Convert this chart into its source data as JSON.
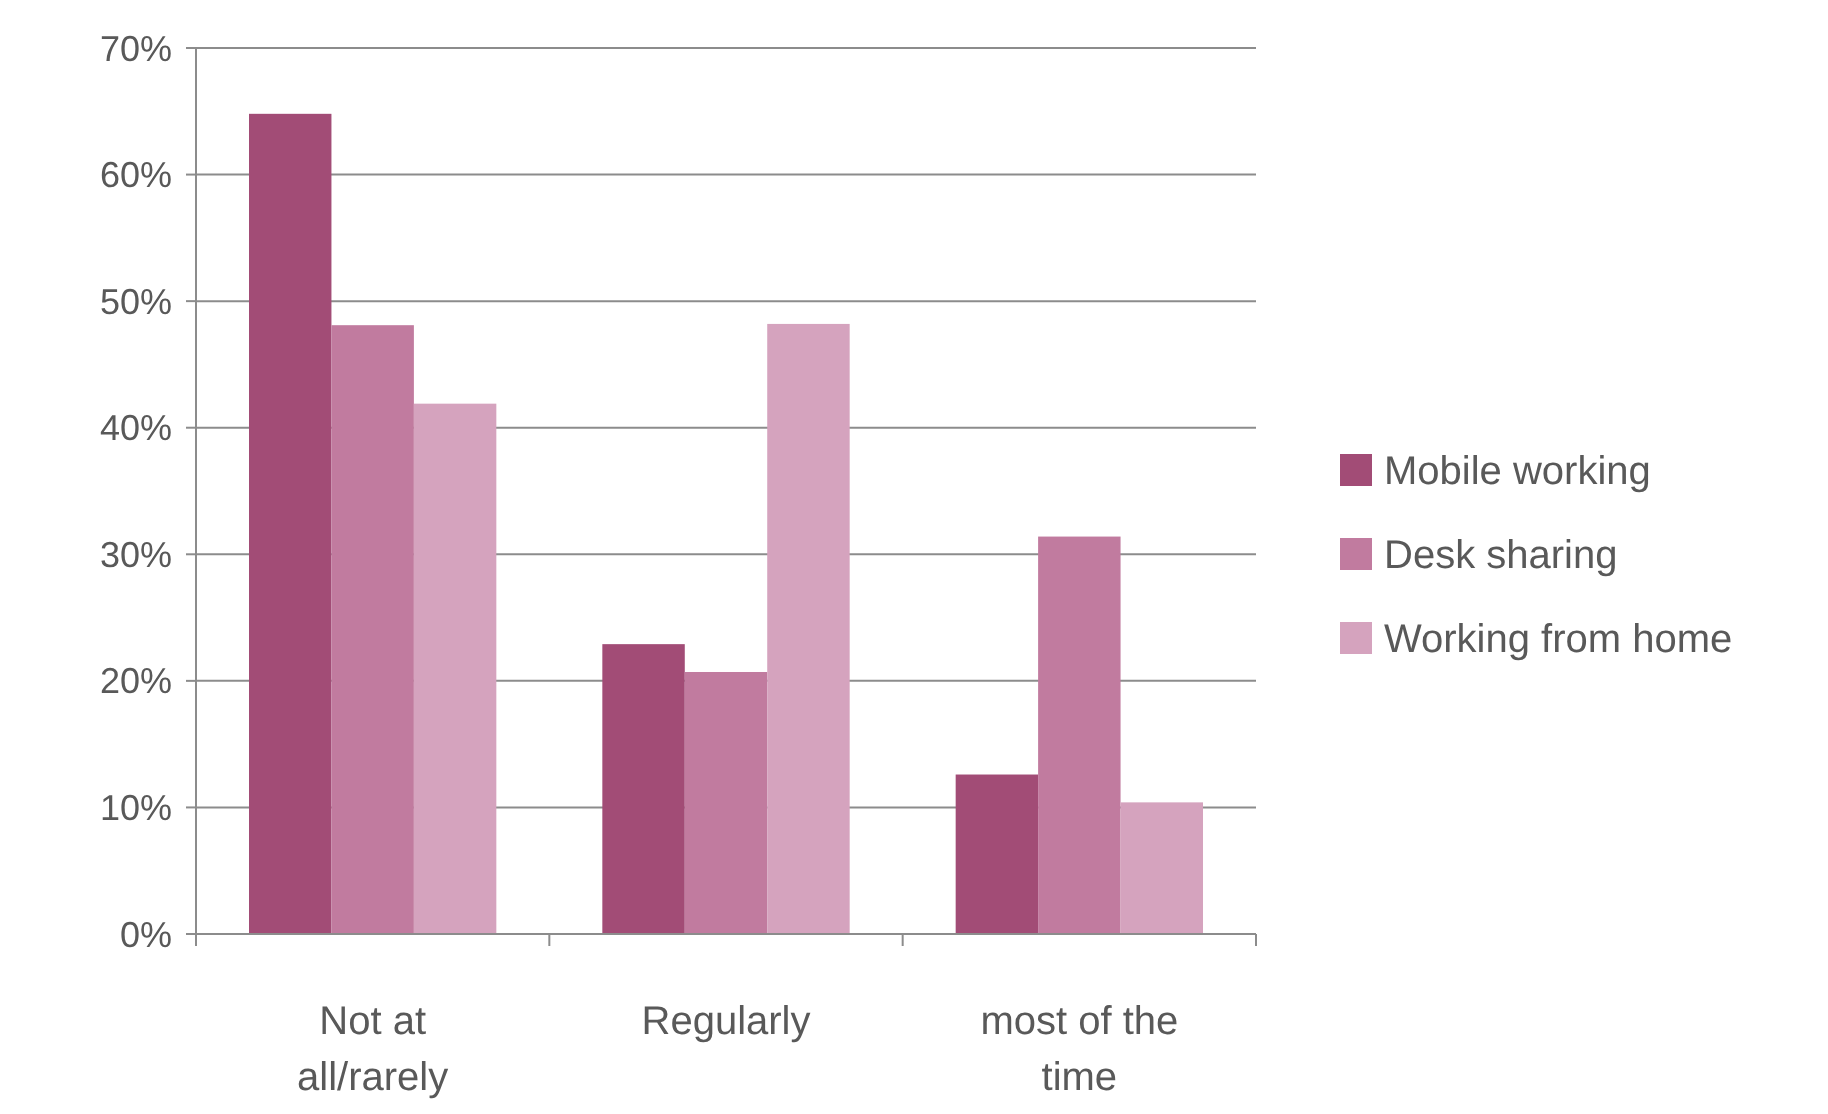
{
  "chart_data": {
    "type": "bar",
    "categories": [
      "Not at all/rarely",
      "Regularly",
      "most of the time"
    ],
    "series": [
      {
        "name": "Mobile working",
        "color": "#a24c76",
        "values": [
          64.8,
          22.9,
          12.6
        ]
      },
      {
        "name": "Desk sharing",
        "color": "#c17b9f",
        "values": [
          48.1,
          20.7,
          31.4
        ]
      },
      {
        "name": "Working from home",
        "color": "#d5a3be",
        "values": [
          41.9,
          48.2,
          10.4
        ]
      }
    ],
    "ylim": [
      0,
      70
    ],
    "yticks": [
      {
        "value": 0,
        "label": "0%"
      },
      {
        "value": 10,
        "label": "10%"
      },
      {
        "value": 20,
        "label": "20%"
      },
      {
        "value": 30,
        "label": "30%"
      },
      {
        "value": 40,
        "label": "40%"
      },
      {
        "value": 50,
        "label": "50%"
      },
      {
        "value": 60,
        "label": "60%"
      },
      {
        "value": 70,
        "label": "70%"
      }
    ],
    "grid": "y",
    "legend": "right"
  }
}
